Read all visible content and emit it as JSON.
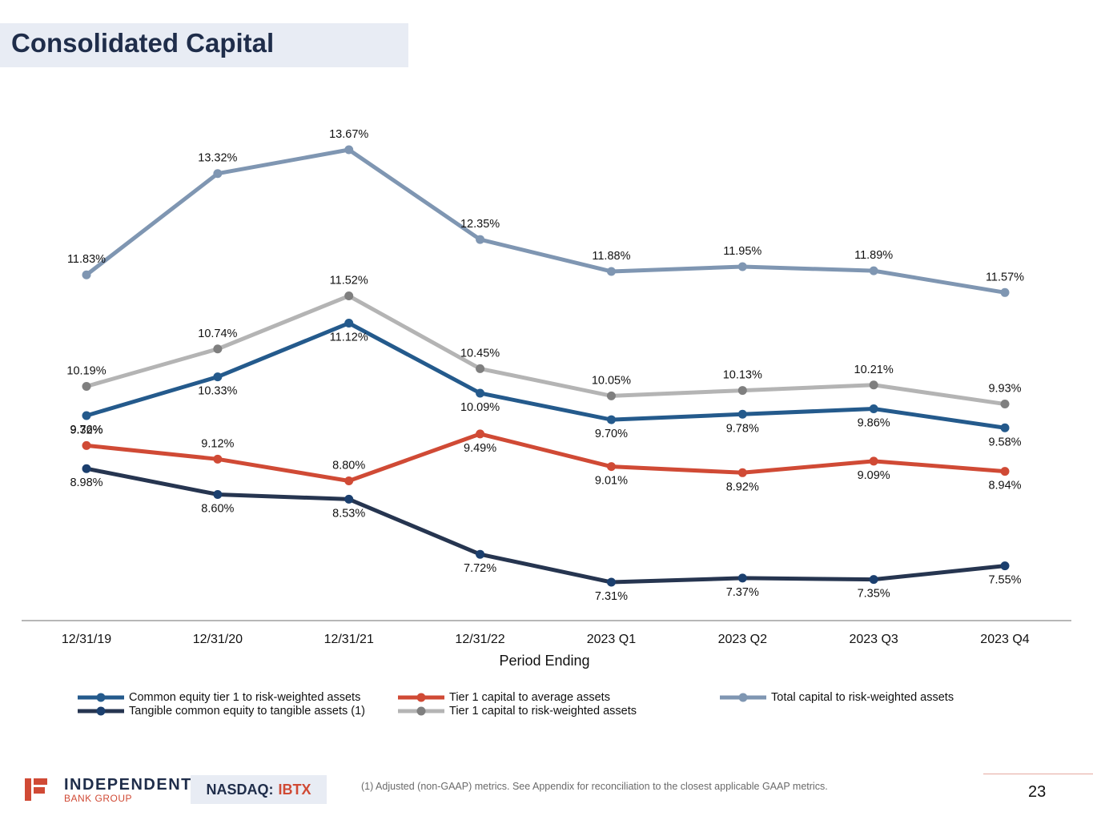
{
  "page": {
    "title": "Consolidated Capital",
    "page_number": "23",
    "footnote": "(1) Adjusted (non-GAAP) metrics. See Appendix for reconciliation to the closest applicable GAAP metrics.",
    "logo": {
      "main": "INDEPENDENT",
      "sub": "BANK GROUP",
      "icon": "ibtx-logo-icon"
    },
    "ticker": {
      "exchange": "NASDAQ:",
      "symbol": "IBTX"
    },
    "colors": {
      "brand_navy": "#1f2d4a",
      "brand_red": "#d04a35",
      "title_bg": "#e8ecf4"
    }
  },
  "chart_data": {
    "type": "line",
    "title": "",
    "xlabel": "Period Ending",
    "ylabel": "",
    "categories": [
      "12/31/19",
      "12/31/20",
      "12/31/21",
      "12/31/22",
      "2023 Q1",
      "2023 Q2",
      "2023 Q3",
      "2023 Q4"
    ],
    "y_unit": "%",
    "ylim": [
      7.31,
      13.67
    ],
    "grid": false,
    "legend_position": "bottom",
    "series": [
      {
        "name": "Total capital to risk-weighted assets",
        "color": "#7f96b2",
        "marker_color": "#7f96b2",
        "label_pos": "above",
        "values": [
          11.83,
          13.32,
          13.67,
          12.35,
          11.88,
          11.95,
          11.89,
          11.57
        ]
      },
      {
        "name": "Tier 1 capital to risk-weighted assets",
        "color": "#b4b4b4",
        "marker_color": "#7f7f7f",
        "label_pos": "above",
        "values": [
          10.19,
          10.74,
          11.52,
          10.45,
          10.05,
          10.13,
          10.21,
          9.93
        ]
      },
      {
        "name": "Common equity tier 1 to risk-weighted assets",
        "color": "#245a8c",
        "marker_color": "#245a8c",
        "label_pos": "below",
        "values": [
          9.76,
          10.33,
          11.12,
          10.09,
          9.7,
          9.78,
          9.86,
          9.58
        ]
      },
      {
        "name": "Tier 1 capital to average assets",
        "color": "#d04a35",
        "marker_color": "#d04a35",
        "label_pos": "mixed",
        "label_positions": [
          "above",
          "above",
          "above",
          "below",
          "below",
          "below",
          "below",
          "below"
        ],
        "values": [
          9.32,
          9.12,
          8.8,
          9.49,
          9.01,
          8.92,
          9.09,
          8.94
        ]
      },
      {
        "name": "Tangible common equity to tangible assets (1)",
        "color": "#263550",
        "marker_color": "#1b3f6e",
        "label_pos": "below",
        "values": [
          8.98,
          8.6,
          8.53,
          7.72,
          7.31,
          7.37,
          7.35,
          7.55
        ]
      }
    ],
    "legend_order": [
      "Common equity tier 1 to risk-weighted assets",
      "Tangible common equity to tangible assets (1)",
      "Tier 1 capital to average assets",
      "Tier 1 capital to risk-weighted assets",
      "Total capital to risk-weighted assets"
    ]
  }
}
